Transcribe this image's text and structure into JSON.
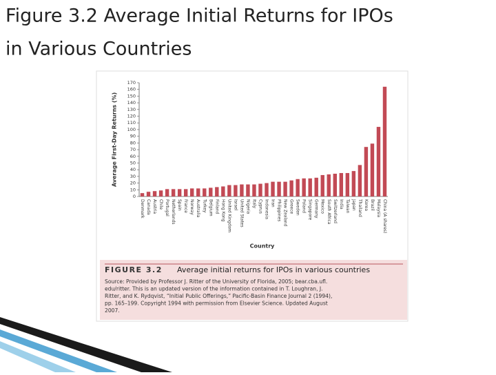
{
  "slide": {
    "title": [
      "Figure 3.2 Average Initial Returns for IPOs",
      "in Various Countries"
    ]
  },
  "chart_data": {
    "type": "bar",
    "ylabel": "Average First-Day Returns (%)",
    "xlabel": "Country",
    "categories": [
      "Denmark",
      "Canada",
      "Austria",
      "Chile",
      "Portugal",
      "Netherlands",
      "Spain",
      "France",
      "Norway",
      "Australia",
      "Turkey",
      "Belgium",
      "Finland",
      "Hong Kong",
      "United Kingdom",
      "Israel",
      "United States",
      "Nigeria",
      "Italy",
      "Cyprus",
      "Indonesia",
      "Iran",
      "Philippines",
      "New Zealand",
      "Greece",
      "Sweden",
      "Poland",
      "Singapore",
      "Germany",
      "Mexico",
      "South Africa",
      "Switzerland",
      "India",
      "Taiwan",
      "Japan",
      "Thailand",
      "Korea",
      "Brazil",
      "Malaysia",
      "China (A shares)"
    ],
    "values": [
      5,
      7,
      8,
      9,
      11,
      11,
      11,
      11,
      12,
      12,
      12,
      13,
      14,
      15,
      17,
      17,
      18,
      18,
      18,
      19,
      20,
      22,
      22,
      22,
      24,
      26,
      27,
      27,
      28,
      32,
      33,
      34,
      35,
      35,
      38,
      47,
      74,
      79,
      104,
      164
    ],
    "color": "#c24a55",
    "ylim": [
      0,
      170
    ],
    "yticks": [
      0,
      10,
      20,
      30,
      40,
      50,
      60,
      70,
      80,
      90,
      100,
      110,
      120,
      130,
      140,
      150,
      160,
      170
    ],
    "grid": false,
    "figure_label": "FIGURE 3.2",
    "caption": "Average initial returns for IPOs in various countries",
    "source": [
      "Source: Provided by Professor J. Ritter of the University of Florida, 2005; bear.cba.ufl.",
      "edu/ritter. This is an updated version of the information contained in T. Loughran, J.",
      "Ritter, and K. Rydqvist, “Initial Public Offerings,” Pacific-Basin Finance Journal 2 (1994),",
      "pp. 165–199. Copyright 1994 with permission from Elsevier Science. Updated August",
      "2007."
    ]
  }
}
